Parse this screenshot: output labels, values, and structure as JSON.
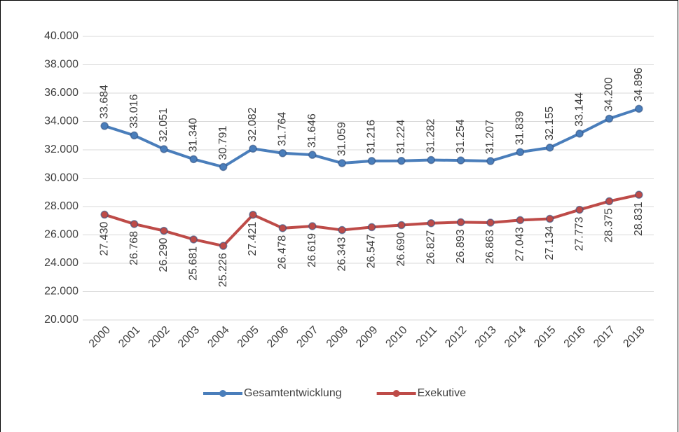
{
  "chart_data": {
    "type": "line",
    "categories": [
      "2000",
      "2001",
      "2002",
      "2003",
      "2004",
      "2005",
      "2006",
      "2007",
      "2008",
      "2009",
      "2010",
      "2011",
      "2012",
      "2013",
      "2014",
      "2015",
      "2016",
      "2017",
      "2018"
    ],
    "series": [
      {
        "name": "Gesamtentwicklung",
        "color": "#4a7ebb",
        "label_side": "above",
        "values": [
          33684,
          33016,
          32051,
          31340,
          30791,
          32082,
          31764,
          31646,
          31059,
          31216,
          31224,
          31282,
          31254,
          31207,
          31839,
          32155,
          33144,
          34200,
          34896
        ],
        "value_labels": [
          "33.684",
          "33.016",
          "32.051",
          "31.340",
          "30.791",
          "32.082",
          "31.764",
          "31.646",
          "31.059",
          "31.216",
          "31.224",
          "31.282",
          "31.254",
          "31.207",
          "31.839",
          "32.155",
          "33.144",
          "34.200",
          "34.896"
        ]
      },
      {
        "name": "Exekutive",
        "color": "#be4b48",
        "label_side": "below",
        "values": [
          27430,
          26768,
          26290,
          25681,
          25226,
          27421,
          26478,
          26619,
          26343,
          26547,
          26690,
          26827,
          26893,
          26863,
          27043,
          27134,
          27773,
          28375,
          28831
        ],
        "value_labels": [
          "27.430",
          "26.768",
          "26.290",
          "25.681",
          "25.226",
          "27.421",
          "26.478",
          "26.619",
          "26.343",
          "26.547",
          "26.690",
          "26.827",
          "26.893",
          "26.863",
          "27.043",
          "27.134",
          "27.773",
          "28.375",
          "28.831"
        ]
      }
    ],
    "ylim": [
      20000,
      40000
    ],
    "yticks": [
      {
        "value": 20000,
        "label": "20.000"
      },
      {
        "value": 22000,
        "label": "22.000"
      },
      {
        "value": 24000,
        "label": "24.000"
      },
      {
        "value": 26000,
        "label": "26.000"
      },
      {
        "value": 28000,
        "label": "28.000"
      },
      {
        "value": 30000,
        "label": "30.000"
      },
      {
        "value": 32000,
        "label": "32.000"
      },
      {
        "value": 34000,
        "label": "34.000"
      },
      {
        "value": 36000,
        "label": "36.000"
      },
      {
        "value": 38000,
        "label": "38.000"
      },
      {
        "value": 40000,
        "label": "40.000"
      }
    ],
    "grid": true,
    "legend": "bottom"
  }
}
